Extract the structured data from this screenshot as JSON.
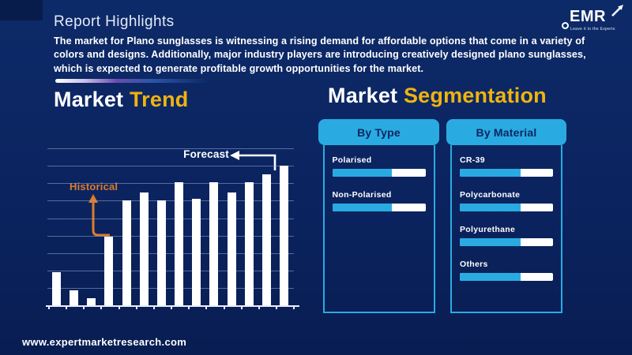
{
  "page": {
    "title": "Report Highlights",
    "paragraph": "The market for Plano sunglasses is witnessing a rising demand for affordable options that come in a variety of colors and designs. Additionally, major industry players are introducing creatively designed plano sunglasses, which is expected to generate profitable growth opportunities for the market.",
    "footer_url": "www.expertmarketresearch.com"
  },
  "logo": {
    "text": "EMR",
    "tagline": "Leave it to the Experts"
  },
  "market_trend": {
    "title_white": "Market",
    "title_gold": "Trend",
    "label_historical": "Historical",
    "label_forecast": "Forecast"
  },
  "market_segmentation": {
    "title_white": "Market",
    "title_gold": "Segmentation",
    "panels": [
      {
        "header": "By Type",
        "items": [
          {
            "label": "Polarised",
            "fill_pct": 64
          },
          {
            "label": "Non-Polarised",
            "fill_pct": 64
          }
        ]
      },
      {
        "header": "By Material",
        "items": [
          {
            "label": "CR-39",
            "fill_pct": 65
          },
          {
            "label": "Polycarbonate",
            "fill_pct": 65
          },
          {
            "label": "Polyurethane",
            "fill_pct": 65
          },
          {
            "label": "Others",
            "fill_pct": 65
          }
        ]
      }
    ]
  },
  "chart_data": {
    "type": "bar",
    "title": "Market Trend",
    "values": [
      24,
      11,
      5,
      49,
      75,
      81,
      75,
      88,
      76,
      88,
      81,
      88,
      94,
      100
    ],
    "bar_count": 14,
    "xlabel": "",
    "ylabel": "",
    "ylim": [
      0,
      100
    ],
    "grid": true,
    "gridline_count": 9,
    "x_tick_count": 15,
    "tick_labels_visible": false,
    "series_color": "#ffffff",
    "annotations": [
      {
        "text": "Historical",
        "color": "#e07b28",
        "target_bar_index": 3
      },
      {
        "text": "Forecast",
        "color": "#ffffff",
        "target_bar_index": 12
      }
    ]
  },
  "colors": {
    "background": "#0b2460",
    "accent_cyan": "#29abe2",
    "gold": "#f0b310",
    "orange": "#e07b28",
    "bar_white": "#ffffff"
  }
}
